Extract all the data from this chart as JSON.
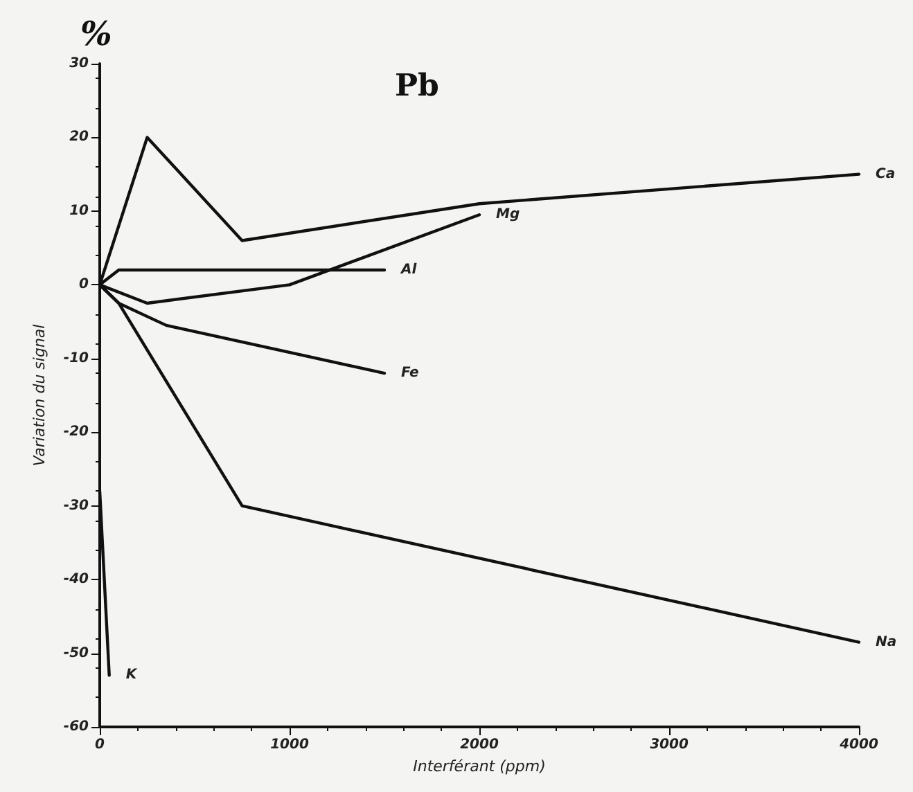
{
  "chart_data": {
    "type": "line",
    "title": "Pb",
    "xlabel": "Interférant (ppm)",
    "ylabel": "Variation du signal",
    "annotations": [
      "%"
    ],
    "xlim": [
      0,
      4000
    ],
    "xticks": [
      0,
      1000,
      2000,
      3000,
      4000
    ],
    "ylim": [
      -60,
      30
    ],
    "yticks": [
      -60,
      -50,
      -40,
      -30,
      -20,
      -10,
      0,
      10,
      20,
      30
    ],
    "grid": false,
    "legend": false,
    "marker": "none",
    "line_style": "solid",
    "series": [
      {
        "name": "Ca",
        "color": "#111111",
        "x": [
          0,
          250,
          750,
          2000,
          4000
        ],
        "values": [
          0,
          20,
          6,
          11,
          15
        ]
      },
      {
        "name": "Mg",
        "color": "#111111",
        "x": [
          0,
          250,
          1000,
          2000
        ],
        "values": [
          0,
          -2.5,
          0,
          9.5
        ]
      },
      {
        "name": "Al",
        "color": "#111111",
        "x": [
          0,
          100,
          1500
        ],
        "values": [
          0,
          2,
          2
        ]
      },
      {
        "name": "Fe",
        "color": "#111111",
        "x": [
          0,
          100,
          350,
          1500
        ],
        "values": [
          0,
          -2.5,
          -5.5,
          -12
        ]
      },
      {
        "name": "Na",
        "color": "#111111",
        "x": [
          0,
          100,
          750,
          4000
        ],
        "values": [
          0,
          -2.5,
          -30,
          -48.5
        ]
      },
      {
        "name": "K",
        "color": "#111111",
        "x": [
          0,
          50
        ],
        "values": [
          -28,
          -53
        ]
      }
    ]
  }
}
